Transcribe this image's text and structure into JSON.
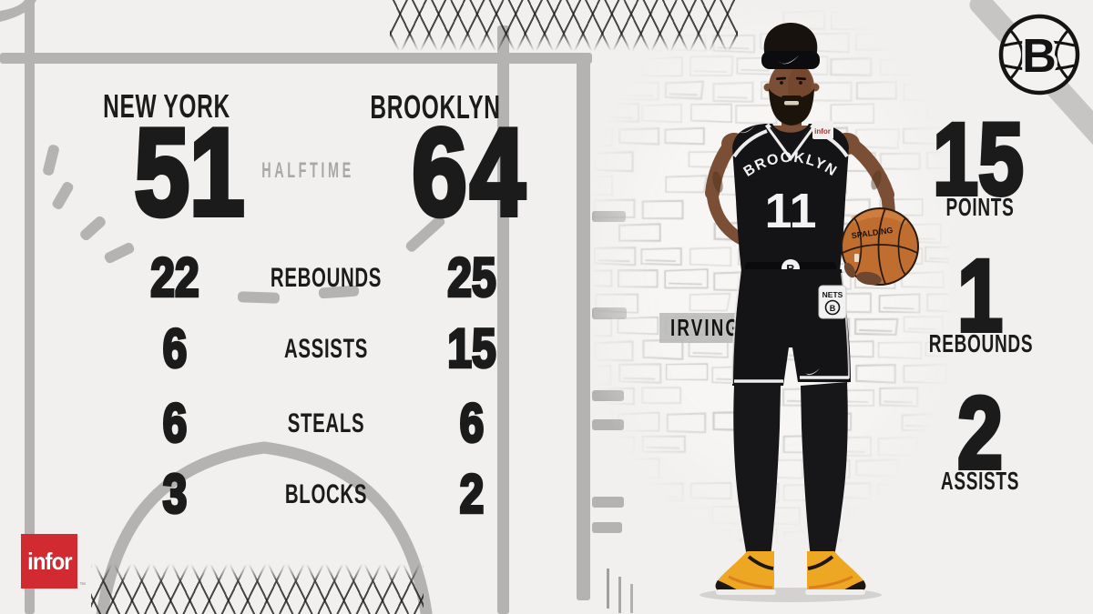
{
  "scoreboard": {
    "away_team": "NEW YORK",
    "away_score": "51",
    "period_label": "HALFTIME",
    "home_team": "BROOKLYN",
    "home_score": "64"
  },
  "team_stats": [
    {
      "label": "REBOUNDS",
      "away": "22",
      "home": "25"
    },
    {
      "label": "ASSISTS",
      "away": "6",
      "home": "15"
    },
    {
      "label": "STEALS",
      "away": "6",
      "home": "6"
    },
    {
      "label": "BLOCKS",
      "away": "3",
      "home": "2"
    }
  ],
  "sponsor": {
    "name": "infor",
    "trademark": "™"
  },
  "player": {
    "name": "IRVING",
    "jersey_team": "BROOKLYN",
    "jersey_number": "11",
    "jersey_patch": "infor",
    "shorts_patch": "NETS",
    "ball_brand": "SPALDING",
    "stats": [
      {
        "value": "15",
        "label": "POINTS"
      },
      {
        "value": "1",
        "label": "REBOUNDS"
      },
      {
        "value": "2",
        "label": "ASSISTS"
      }
    ]
  },
  "team_logo": {
    "letter": "B"
  },
  "colors": {
    "background": "#f1f0ee",
    "court_line": "#b4b3b1",
    "ink": "#1b1b1b",
    "muted_gray": "#a9a8a6",
    "infor_red": "#d12a30",
    "ball_orange": "#c06e30",
    "shoe_yellow": "#eda722"
  }
}
